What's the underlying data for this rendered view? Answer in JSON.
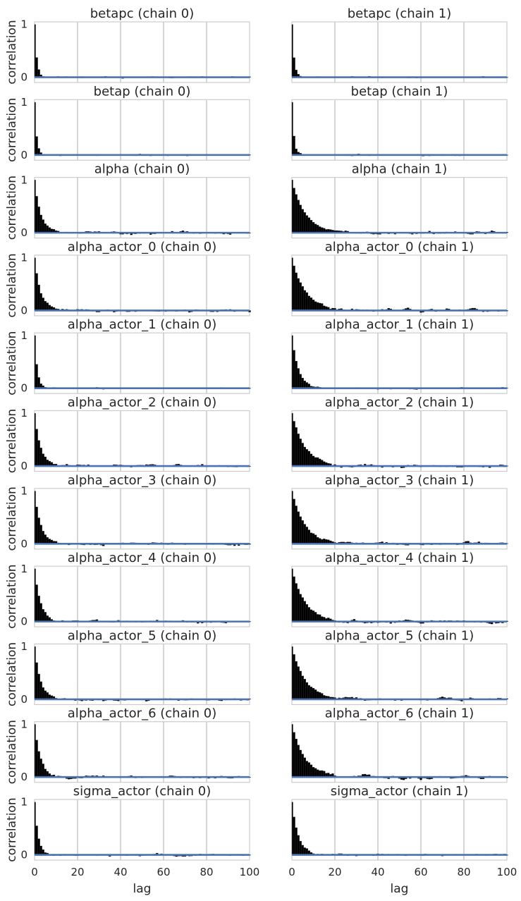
{
  "chart_data": {
    "type": "bar",
    "layout": "grid 11 rows x 2 columns, shared x and y axes",
    "xlabel": "lag",
    "ylabel": "correlation",
    "xlim": [
      0,
      100
    ],
    "ylim": [
      -0.1,
      1.05
    ],
    "x_ticks": [
      "0",
      "20",
      "40",
      "60",
      "80",
      "100"
    ],
    "y_ticks": [
      "0",
      "1"
    ],
    "grid": true,
    "bar_color": "#000000",
    "baseline_color": "#4c72b0",
    "frame_color": "#cccccc",
    "panels": [
      {
        "title": "betapc (chain 0)",
        "decay": 0.38,
        "rho": 0.3,
        "noise": 0.008,
        "seed": 11
      },
      {
        "title": "betapc (chain 1)",
        "decay": 0.38,
        "rho": 0.3,
        "noise": 0.008,
        "seed": 12
      },
      {
        "title": "betap (chain 0)",
        "decay": 0.36,
        "rho": 0.3,
        "noise": 0.008,
        "seed": 21
      },
      {
        "title": "betap (chain 1)",
        "decay": 0.36,
        "rho": 0.3,
        "noise": 0.008,
        "seed": 22
      },
      {
        "title": "alpha (chain 0)",
        "decay": 0.7,
        "rho": 0.7,
        "noise": 0.012,
        "seed": 31
      },
      {
        "title": "alpha (chain 1)",
        "decay": 0.85,
        "rho": 0.7,
        "noise": 0.014,
        "seed": 32
      },
      {
        "title": "alpha_actor_0 (chain 0)",
        "decay": 0.7,
        "rho": 0.7,
        "noise": 0.012,
        "seed": 41
      },
      {
        "title": "alpha_actor_0 (chain 1)",
        "decay": 0.85,
        "rho": 0.7,
        "noise": 0.014,
        "seed": 42
      },
      {
        "title": "alpha_actor_1 (chain 0)",
        "decay": 0.45,
        "rho": 0.3,
        "noise": 0.008,
        "seed": 51
      },
      {
        "title": "alpha_actor_1 (chain 1)",
        "decay": 0.72,
        "rho": 0.3,
        "noise": 0.008,
        "seed": 52
      },
      {
        "title": "alpha_actor_2 (chain 0)",
        "decay": 0.7,
        "rho": 0.7,
        "noise": 0.012,
        "seed": 61
      },
      {
        "title": "alpha_actor_2 (chain 1)",
        "decay": 0.85,
        "rho": 0.7,
        "noise": 0.014,
        "seed": 62
      },
      {
        "title": "alpha_actor_3 (chain 0)",
        "decay": 0.7,
        "rho": 0.7,
        "noise": 0.012,
        "seed": 71
      },
      {
        "title": "alpha_actor_3 (chain 1)",
        "decay": 0.85,
        "rho": 0.7,
        "noise": 0.014,
        "seed": 72
      },
      {
        "title": "alpha_actor_4 (chain 0)",
        "decay": 0.7,
        "rho": 0.7,
        "noise": 0.012,
        "seed": 81
      },
      {
        "title": "alpha_actor_4 (chain 1)",
        "decay": 0.85,
        "rho": 0.7,
        "noise": 0.014,
        "seed": 82
      },
      {
        "title": "alpha_actor_5 (chain 0)",
        "decay": 0.7,
        "rho": 0.7,
        "noise": 0.012,
        "seed": 91
      },
      {
        "title": "alpha_actor_5 (chain 1)",
        "decay": 0.85,
        "rho": 0.7,
        "noise": 0.014,
        "seed": 92
      },
      {
        "title": "alpha_actor_6 (chain 0)",
        "decay": 0.7,
        "rho": 0.7,
        "noise": 0.012,
        "seed": 101
      },
      {
        "title": "alpha_actor_6 (chain 1)",
        "decay": 0.85,
        "rho": 0.7,
        "noise": 0.014,
        "seed": 102
      },
      {
        "title": "sigma_actor (chain 0)",
        "decay": 0.55,
        "rho": 0.5,
        "noise": 0.01,
        "seed": 111
      },
      {
        "title": "sigma_actor (chain 1)",
        "decay": 0.72,
        "rho": 0.5,
        "noise": 0.01,
        "seed": 112
      }
    ]
  }
}
